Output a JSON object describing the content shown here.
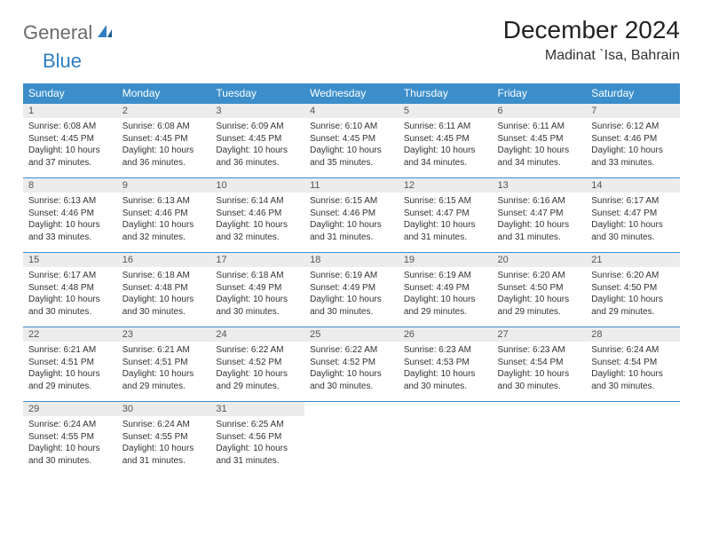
{
  "logo": {
    "text_gray": "General",
    "text_blue": "Blue"
  },
  "header": {
    "month_title": "December 2024",
    "location": "Madinat `Isa, Bahrain"
  },
  "colors": {
    "header_bg": "#3c8ecb",
    "header_fg": "#ffffff",
    "daynum_bg": "#ececec",
    "cell_border": "#3c8ecb",
    "logo_gray": "#6b6b6b",
    "logo_blue": "#2f7fc2"
  },
  "typography": {
    "month_title_fontsize": 28,
    "location_fontsize": 16,
    "weekday_fontsize": 12,
    "daynum_fontsize": 11,
    "body_fontsize": 10
  },
  "calendar": {
    "weekdays": [
      "Sunday",
      "Monday",
      "Tuesday",
      "Wednesday",
      "Thursday",
      "Friday",
      "Saturday"
    ],
    "days": [
      {
        "n": "1",
        "sunrise": "Sunrise: 6:08 AM",
        "sunset": "Sunset: 4:45 PM",
        "daylight": "Daylight: 10 hours and 37 minutes."
      },
      {
        "n": "2",
        "sunrise": "Sunrise: 6:08 AM",
        "sunset": "Sunset: 4:45 PM",
        "daylight": "Daylight: 10 hours and 36 minutes."
      },
      {
        "n": "3",
        "sunrise": "Sunrise: 6:09 AM",
        "sunset": "Sunset: 4:45 PM",
        "daylight": "Daylight: 10 hours and 36 minutes."
      },
      {
        "n": "4",
        "sunrise": "Sunrise: 6:10 AM",
        "sunset": "Sunset: 4:45 PM",
        "daylight": "Daylight: 10 hours and 35 minutes."
      },
      {
        "n": "5",
        "sunrise": "Sunrise: 6:11 AM",
        "sunset": "Sunset: 4:45 PM",
        "daylight": "Daylight: 10 hours and 34 minutes."
      },
      {
        "n": "6",
        "sunrise": "Sunrise: 6:11 AM",
        "sunset": "Sunset: 4:45 PM",
        "daylight": "Daylight: 10 hours and 34 minutes."
      },
      {
        "n": "7",
        "sunrise": "Sunrise: 6:12 AM",
        "sunset": "Sunset: 4:46 PM",
        "daylight": "Daylight: 10 hours and 33 minutes."
      },
      {
        "n": "8",
        "sunrise": "Sunrise: 6:13 AM",
        "sunset": "Sunset: 4:46 PM",
        "daylight": "Daylight: 10 hours and 33 minutes."
      },
      {
        "n": "9",
        "sunrise": "Sunrise: 6:13 AM",
        "sunset": "Sunset: 4:46 PM",
        "daylight": "Daylight: 10 hours and 32 minutes."
      },
      {
        "n": "10",
        "sunrise": "Sunrise: 6:14 AM",
        "sunset": "Sunset: 4:46 PM",
        "daylight": "Daylight: 10 hours and 32 minutes."
      },
      {
        "n": "11",
        "sunrise": "Sunrise: 6:15 AM",
        "sunset": "Sunset: 4:46 PM",
        "daylight": "Daylight: 10 hours and 31 minutes."
      },
      {
        "n": "12",
        "sunrise": "Sunrise: 6:15 AM",
        "sunset": "Sunset: 4:47 PM",
        "daylight": "Daylight: 10 hours and 31 minutes."
      },
      {
        "n": "13",
        "sunrise": "Sunrise: 6:16 AM",
        "sunset": "Sunset: 4:47 PM",
        "daylight": "Daylight: 10 hours and 31 minutes."
      },
      {
        "n": "14",
        "sunrise": "Sunrise: 6:17 AM",
        "sunset": "Sunset: 4:47 PM",
        "daylight": "Daylight: 10 hours and 30 minutes."
      },
      {
        "n": "15",
        "sunrise": "Sunrise: 6:17 AM",
        "sunset": "Sunset: 4:48 PM",
        "daylight": "Daylight: 10 hours and 30 minutes."
      },
      {
        "n": "16",
        "sunrise": "Sunrise: 6:18 AM",
        "sunset": "Sunset: 4:48 PM",
        "daylight": "Daylight: 10 hours and 30 minutes."
      },
      {
        "n": "17",
        "sunrise": "Sunrise: 6:18 AM",
        "sunset": "Sunset: 4:49 PM",
        "daylight": "Daylight: 10 hours and 30 minutes."
      },
      {
        "n": "18",
        "sunrise": "Sunrise: 6:19 AM",
        "sunset": "Sunset: 4:49 PM",
        "daylight": "Daylight: 10 hours and 30 minutes."
      },
      {
        "n": "19",
        "sunrise": "Sunrise: 6:19 AM",
        "sunset": "Sunset: 4:49 PM",
        "daylight": "Daylight: 10 hours and 29 minutes."
      },
      {
        "n": "20",
        "sunrise": "Sunrise: 6:20 AM",
        "sunset": "Sunset: 4:50 PM",
        "daylight": "Daylight: 10 hours and 29 minutes."
      },
      {
        "n": "21",
        "sunrise": "Sunrise: 6:20 AM",
        "sunset": "Sunset: 4:50 PM",
        "daylight": "Daylight: 10 hours and 29 minutes."
      },
      {
        "n": "22",
        "sunrise": "Sunrise: 6:21 AM",
        "sunset": "Sunset: 4:51 PM",
        "daylight": "Daylight: 10 hours and 29 minutes."
      },
      {
        "n": "23",
        "sunrise": "Sunrise: 6:21 AM",
        "sunset": "Sunset: 4:51 PM",
        "daylight": "Daylight: 10 hours and 29 minutes."
      },
      {
        "n": "24",
        "sunrise": "Sunrise: 6:22 AM",
        "sunset": "Sunset: 4:52 PM",
        "daylight": "Daylight: 10 hours and 29 minutes."
      },
      {
        "n": "25",
        "sunrise": "Sunrise: 6:22 AM",
        "sunset": "Sunset: 4:52 PM",
        "daylight": "Daylight: 10 hours and 30 minutes."
      },
      {
        "n": "26",
        "sunrise": "Sunrise: 6:23 AM",
        "sunset": "Sunset: 4:53 PM",
        "daylight": "Daylight: 10 hours and 30 minutes."
      },
      {
        "n": "27",
        "sunrise": "Sunrise: 6:23 AM",
        "sunset": "Sunset: 4:54 PM",
        "daylight": "Daylight: 10 hours and 30 minutes."
      },
      {
        "n": "28",
        "sunrise": "Sunrise: 6:24 AM",
        "sunset": "Sunset: 4:54 PM",
        "daylight": "Daylight: 10 hours and 30 minutes."
      },
      {
        "n": "29",
        "sunrise": "Sunrise: 6:24 AM",
        "sunset": "Sunset: 4:55 PM",
        "daylight": "Daylight: 10 hours and 30 minutes."
      },
      {
        "n": "30",
        "sunrise": "Sunrise: 6:24 AM",
        "sunset": "Sunset: 4:55 PM",
        "daylight": "Daylight: 10 hours and 31 minutes."
      },
      {
        "n": "31",
        "sunrise": "Sunrise: 6:25 AM",
        "sunset": "Sunset: 4:56 PM",
        "daylight": "Daylight: 10 hours and 31 minutes."
      }
    ]
  }
}
